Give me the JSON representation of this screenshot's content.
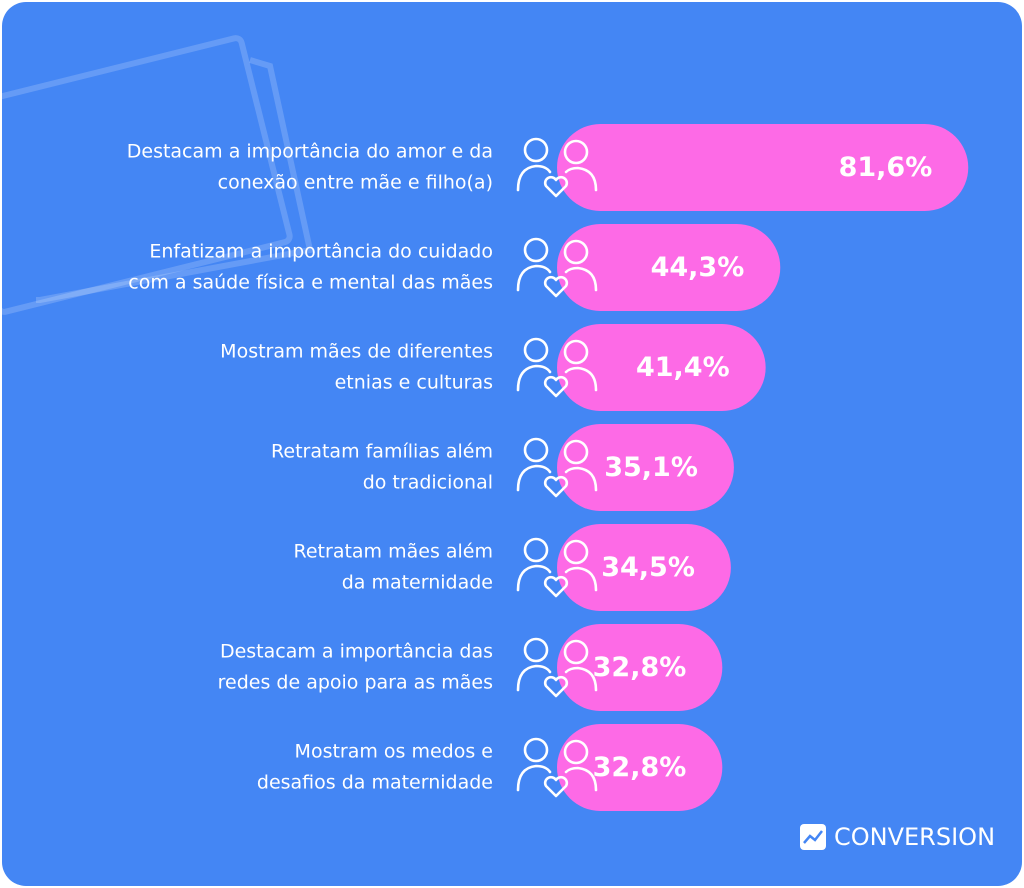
{
  "chart_data": {
    "type": "bar",
    "orientation": "horizontal",
    "categories": [
      [
        "Destacam a importância do amor e da",
        "conexão entre mãe e filho(a)"
      ],
      [
        "Enfatizam a importância do cuidado",
        "com a saúde física e mental das mães"
      ],
      [
        "Mostram mães de diferentes",
        "etnias e culturas"
      ],
      [
        "Retratam famílias além",
        "do tradicional"
      ],
      [
        "Retratam mães além",
        "da maternidade"
      ],
      [
        "Destacam a importância das",
        "redes de apoio para as mães"
      ],
      [
        "Mostram os medos e",
        "desafios da maternidade"
      ]
    ],
    "values": [
      81.6,
      44.3,
      41.4,
      35.1,
      34.5,
      32.8,
      32.8
    ],
    "value_labels": [
      "81,6%",
      "44,3%",
      "41,4%",
      "35,1%",
      "34,5%",
      "32,8%",
      "32,8%"
    ],
    "color": "#fd6ae6",
    "background": "#4486f4",
    "brand": "CONVERSION"
  }
}
